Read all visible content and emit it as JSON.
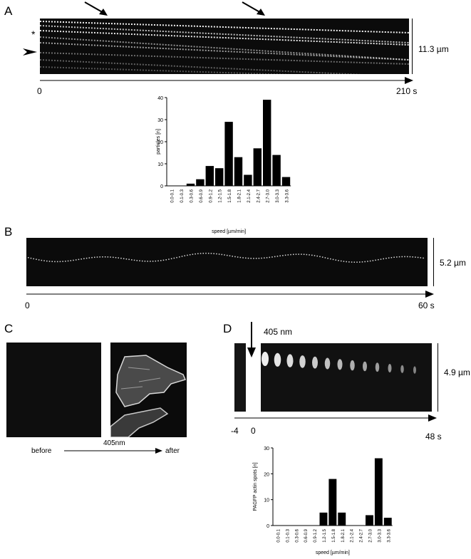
{
  "panels": {
    "A": {
      "letter": "A",
      "asterisk": "*",
      "scale_label": "11.3 µm",
      "time_start": "0",
      "time_end": "210 s",
      "histogram": {
        "type": "bar",
        "ylabel": "particles [n]",
        "xlabel": "speed [µm/min]",
        "ylim": [
          0,
          40
        ],
        "yticks": [
          "0",
          "10",
          "20",
          "30",
          "40"
        ],
        "categories": [
          "0.0-0.1",
          "0.1-0.3",
          "0.3-0.6",
          "0.6-0.9",
          "0.9-1.2",
          "1.2-1.5",
          "1.5-1.8",
          "1.8-2.1",
          "2.1-2.4",
          "2.4-2.7",
          "2.7-3.0",
          "3.0-3.3",
          "3.3-3.6"
        ],
        "values": [
          0,
          0,
          1,
          3,
          9,
          8,
          29,
          13,
          5,
          17,
          39,
          14,
          4
        ]
      }
    },
    "B": {
      "letter": "B",
      "scale_label": "5.2 µm",
      "time_start": "0",
      "time_end": "60 s"
    },
    "C": {
      "letter": "C",
      "before_label": "before",
      "arrow_label": "405nm",
      "after_label": "after"
    },
    "D": {
      "letter": "D",
      "laser_label": "405 nm",
      "scale_label": "4.9 µm",
      "time_minus": "-4",
      "time_start": "0",
      "time_end": "48 s",
      "histogram": {
        "type": "bar",
        "ylabel": "PAGFP actin spots [n]",
        "xlabel": "speed [µm/min]",
        "ylim": [
          0,
          30
        ],
        "yticks": [
          "0",
          "10",
          "20",
          "30"
        ],
        "categories": [
          "0.0-0.1",
          "0.1-0.3",
          "0.3-0.6",
          "0.6-0.9",
          "0.9-1.2",
          "1.2-1.5",
          "1.5-1.8",
          "1.8-2.1",
          "2.1-2.4",
          "2.4-2.7",
          "2.7-3.0",
          "3.0-3.3",
          "3.3-3.6"
        ],
        "values": [
          0,
          0,
          0,
          0,
          0,
          5,
          18,
          5,
          0,
          0,
          4,
          26,
          3
        ]
      }
    }
  },
  "colors": {
    "bar": "#000000",
    "kymo_bg": "#0b0b0b"
  }
}
